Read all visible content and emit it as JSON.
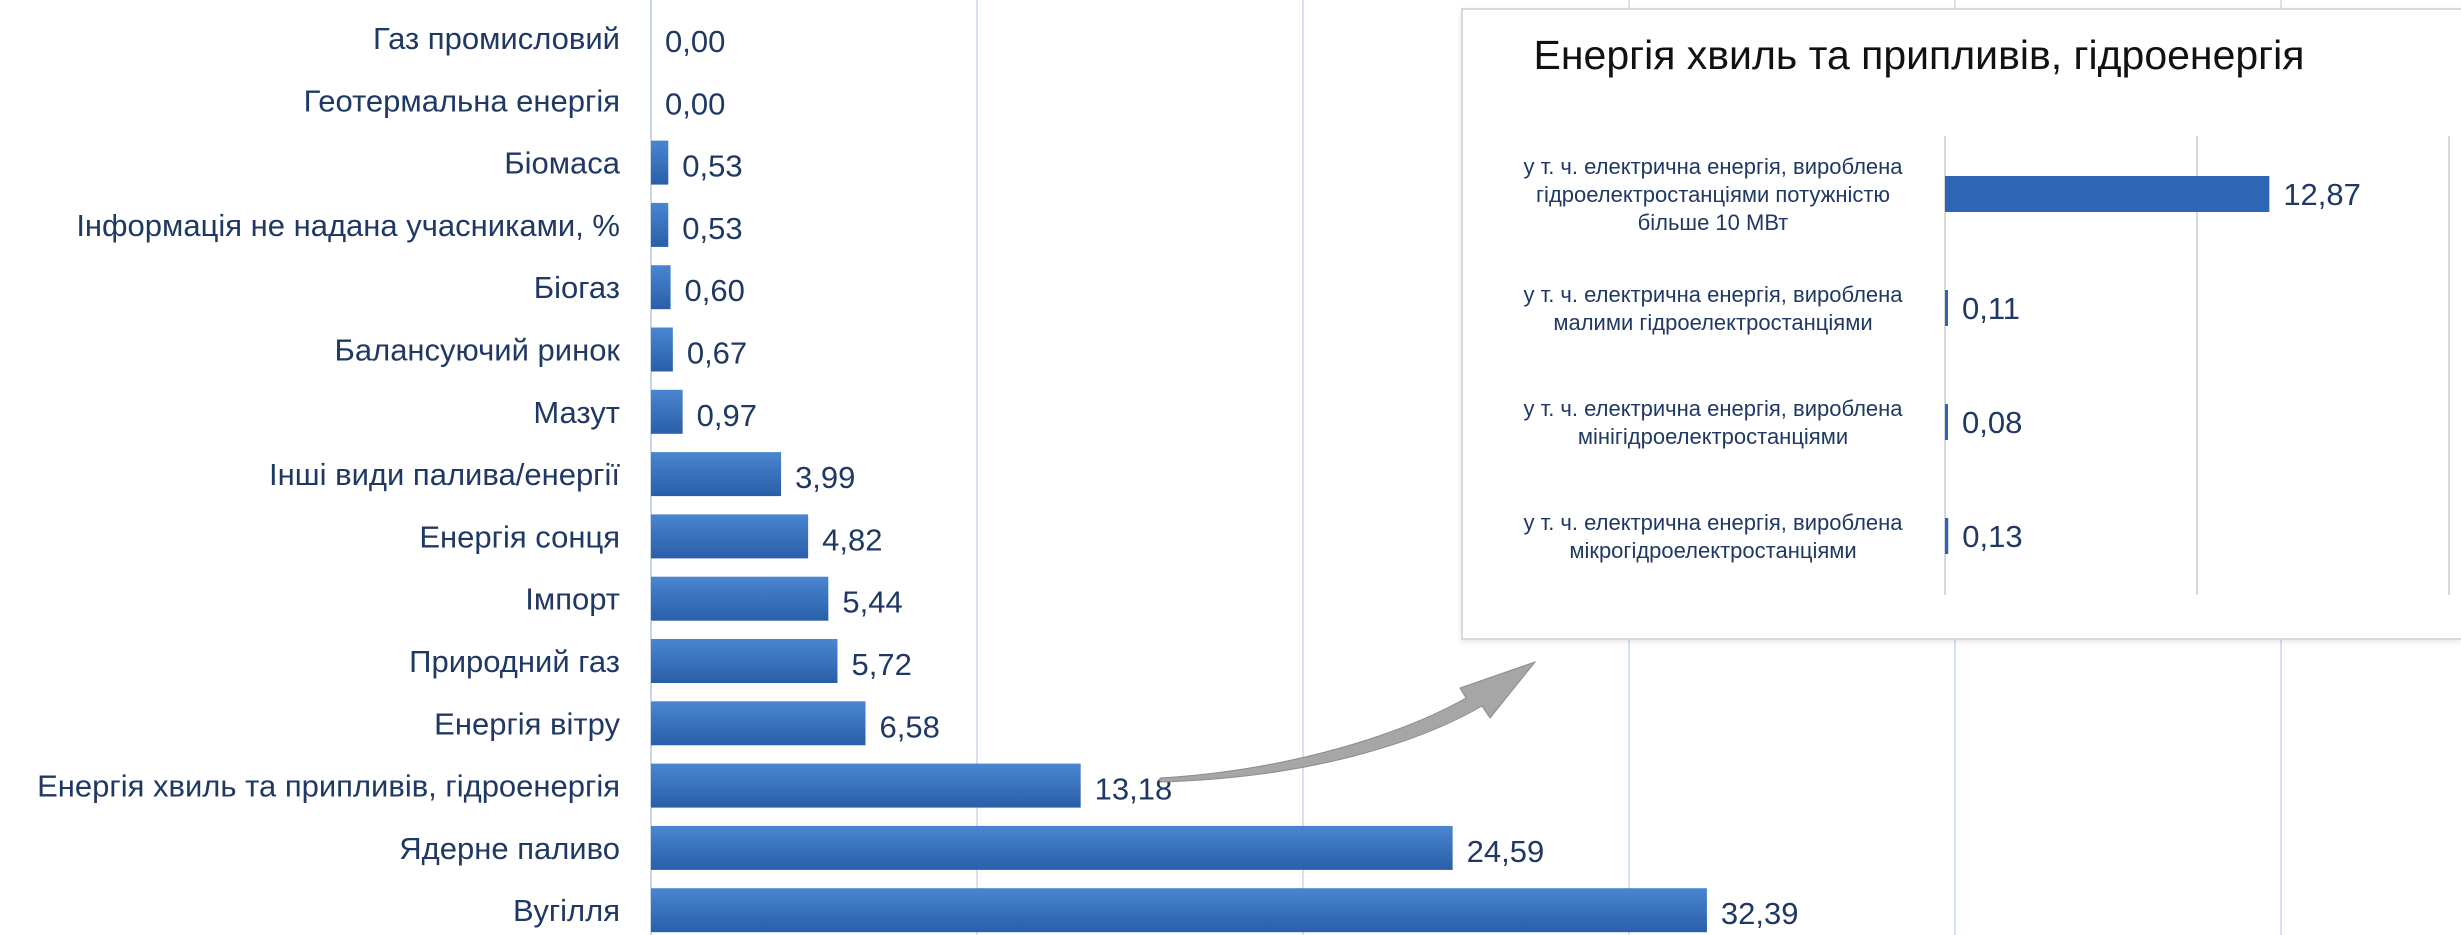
{
  "chart_data": [
    {
      "type": "bar",
      "orientation": "horizontal",
      "title": "",
      "xlabel": "",
      "ylabel": "",
      "xlim": [
        0,
        55
      ],
      "grid": true,
      "colors": {
        "bar": "#2e66b5",
        "bar_light": "#4a86d0",
        "grid": "#d6e2f2",
        "label": "#1f3864"
      },
      "categories": [
        "Газ промисловий",
        "Геотермальна енергія",
        "Біомаса",
        "Інформація не надана учасниками, %",
        "Біогаз",
        "Балансуючий ринок",
        "Мазут",
        "Інші види палива/енергії",
        "Енергія сонця",
        "Імпорт",
        "Природний газ",
        "Енергія вітру",
        "Енергія хвиль та припливів, гідроенергія",
        "Ядерне паливо",
        "Вугілля"
      ],
      "values": [
        0.0,
        0.0,
        0.53,
        0.53,
        0.6,
        0.67,
        0.97,
        3.99,
        4.82,
        5.44,
        5.72,
        6.58,
        13.18,
        24.59,
        32.39
      ],
      "value_labels": [
        "0,00",
        "0,00",
        "0,53",
        "0,53",
        "0,60",
        "0,67",
        "0,97",
        "3,99",
        "4,82",
        "5,44",
        "5,72",
        "6,58",
        "13,18",
        "24,59",
        "32,39"
      ]
    },
    {
      "type": "bar",
      "orientation": "horizontal",
      "title": "Енергія хвиль та припливів, гідроенергія",
      "xlabel": "",
      "ylabel": "",
      "xlim": [
        0,
        20
      ],
      "grid": true,
      "categories": [
        "у т. ч. електрична енергія, вироблена гідроелектростанціями потужністю більше 10 МВт",
        "у т. ч. електрична енергія, вироблена малими гідроелектростанціями",
        "у т. ч. електрична енергія, вироблена мінігідроелектростанціями",
        "у т. ч. електрична енергія, вироблена мікрогідроелектростанціями"
      ],
      "category_lines": [
        [
          "у т. ч. електрична енергія, вироблена",
          "гідроелектростанціями потужністю",
          "більше 10 МВт"
        ],
        [
          "у т. ч. електрична енергія, вироблена",
          "малими гідроелектростанціями"
        ],
        [
          "у т. ч. електрична енергія, вироблена",
          "мінігідроелектростанціями"
        ],
        [
          "у т. ч. електрична енергія, вироблена",
          "мікрогідроелектростанціями"
        ]
      ],
      "values": [
        12.87,
        0.11,
        0.08,
        0.13
      ],
      "value_labels": [
        "12,87",
        "0,11",
        "0,08",
        "0,13"
      ]
    }
  ],
  "callout": {
    "from_category": "Енергія хвиль та припливів, гідроенергія",
    "arrow_color": "#a6a6a6"
  }
}
